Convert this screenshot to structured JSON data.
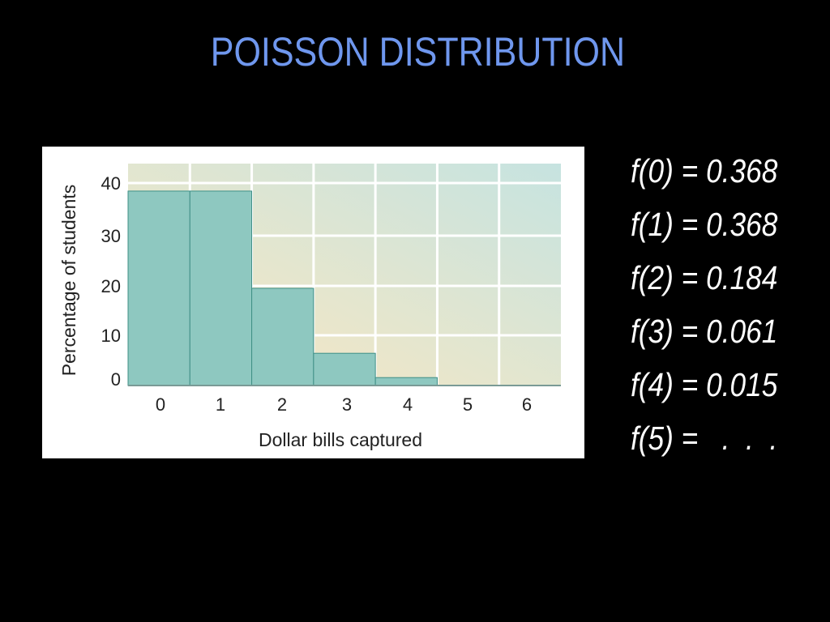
{
  "slide": {
    "title": "POISSON DISTRIBUTION"
  },
  "chart_data": {
    "type": "bar",
    "categories": [
      "0",
      "1",
      "2",
      "3",
      "4",
      "5",
      "6"
    ],
    "values": [
      36.8,
      36.8,
      18.4,
      6.1,
      1.5,
      0,
      0
    ],
    "xlabel": "Dollar bills captured",
    "ylabel": "Percentage of students",
    "ylim": [
      0,
      42
    ],
    "yticks": [
      0,
      10,
      20,
      30,
      40
    ],
    "grid": true,
    "colors": {
      "bar_fill": "#8ec8c0",
      "bar_stroke": "#3f8f86",
      "bg_start": "#fde8c0",
      "bg_end": "#c6e3e0",
      "grid": "#ffffff"
    }
  },
  "formulas": [
    "f(0) = 0.368",
    "f(1) = 0.368",
    "f(2) = 0.184",
    "f(3) = 0.061",
    "f(4) = 0.015",
    "f(5) =   .  .  ."
  ]
}
